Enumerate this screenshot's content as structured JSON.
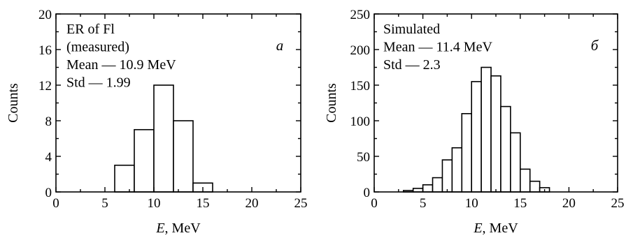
{
  "chart_data": [
    {
      "type": "bar",
      "panel_letter": "a",
      "annotation_lines": [
        "ER of Fl",
        "(measured)",
        "Mean — 10.9 MeV",
        "Std — 1.99"
      ],
      "xlabel_italic": "E",
      "xlabel_rest": ", MeV",
      "ylabel": "Counts",
      "xlim": [
        0,
        25
      ],
      "ylim": [
        0,
        20
      ],
      "xticks": [
        0,
        5,
        10,
        15,
        20,
        25
      ],
      "yticks": [
        0,
        4,
        8,
        12,
        16,
        20
      ],
      "bin_width": 2,
      "bin_edges": [
        6,
        8,
        10,
        12,
        14
      ],
      "values": [
        3,
        7,
        12,
        8,
        1
      ],
      "grid": false
    },
    {
      "type": "bar",
      "panel_letter": "б",
      "annotation_lines": [
        "Simulated",
        "Mean — 11.4 MeV",
        "Std — 2.3"
      ],
      "xlabel_italic": "E",
      "xlabel_rest": ", MeV",
      "ylabel": "Counts",
      "xlim": [
        0,
        25
      ],
      "ylim": [
        0,
        250
      ],
      "xticks": [
        0,
        5,
        10,
        15,
        20,
        25
      ],
      "yticks": [
        0,
        50,
        100,
        150,
        200,
        250
      ],
      "bin_width": 1,
      "bin_edges": [
        3,
        4,
        5,
        6,
        7,
        8,
        9,
        10,
        11,
        12,
        13,
        14,
        15,
        16,
        17
      ],
      "values": [
        2,
        5,
        10,
        20,
        45,
        62,
        110,
        155,
        175,
        163,
        120,
        83,
        32,
        15,
        6
      ],
      "grid": false
    }
  ]
}
